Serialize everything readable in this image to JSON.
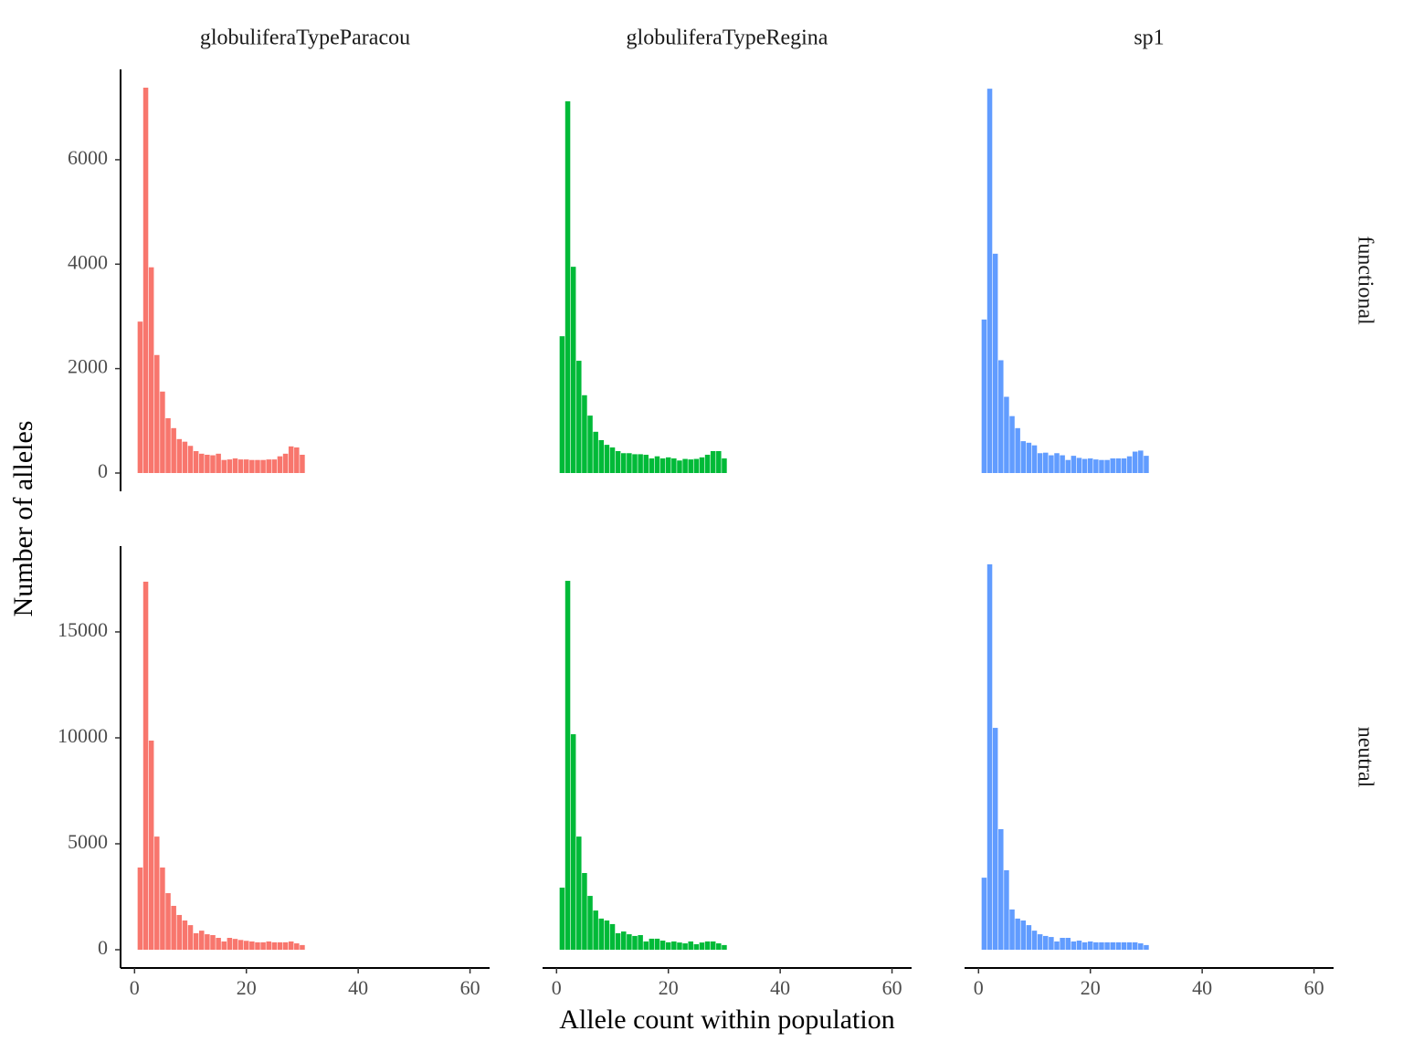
{
  "chart_data": {
    "type": "bar",
    "x_label": "Allele count within population",
    "y_label": "Number of alleles",
    "x": [
      1,
      2,
      3,
      4,
      5,
      6,
      7,
      8,
      9,
      10,
      11,
      12,
      13,
      14,
      15,
      16,
      17,
      18,
      19,
      20,
      21,
      22,
      23,
      24,
      25,
      26,
      27,
      28,
      29,
      30
    ],
    "xlim": [
      -2.5,
      63.5
    ],
    "xticks": [
      0,
      20,
      40,
      60
    ],
    "columns": [
      {
        "name": "globuliferaTypeParacou",
        "color": "#F8766D"
      },
      {
        "name": "globuliferaTypeRegina",
        "color": "#00BA38"
      },
      {
        "name": "sp1",
        "color": "#619CFF"
      }
    ],
    "rows": [
      {
        "name": "functional",
        "ylim": [
          -350,
          7730
        ],
        "yticks": [
          0,
          2000,
          4000,
          6000
        ],
        "series": [
          {
            "values": [
              2900,
              7380,
              3940,
              2260,
              1560,
              1050,
              860,
              650,
              600,
              520,
              420,
              370,
              350,
              340,
              370,
              250,
              260,
              280,
              260,
              260,
              250,
              250,
              250,
              260,
              260,
              320,
              370,
              510,
              490,
              350
            ]
          },
          {
            "values": [
              2620,
              7120,
              3950,
              2150,
              1490,
              1100,
              790,
              630,
              540,
              490,
              420,
              380,
              380,
              360,
              360,
              350,
              280,
              320,
              280,
              300,
              280,
              240,
              270,
              260,
              270,
              300,
              350,
              420,
              420,
              280
            ]
          },
          {
            "values": [
              2940,
              7360,
              4200,
              2160,
              1460,
              1090,
              860,
              610,
              580,
              530,
              380,
              390,
              340,
              380,
              340,
              250,
              330,
              290,
              270,
              280,
              260,
              250,
              250,
              280,
              280,
              280,
              320,
              410,
              430,
              330
            ]
          }
        ]
      },
      {
        "name": "neutral",
        "ylim": [
          -862,
          19050
        ],
        "yticks": [
          0,
          5000,
          10000,
          15000
        ],
        "series": [
          {
            "values": [
              3880,
              17370,
              9870,
              5340,
              3880,
              2670,
              2070,
              1640,
              1380,
              1160,
              780,
              900,
              730,
              690,
              560,
              390,
              560,
              510,
              460,
              420,
              390,
              350,
              350,
              390,
              350,
              350,
              350,
              390,
              300,
              220
            ]
          },
          {
            "values": [
              2930,
              17410,
              10170,
              5340,
              3620,
              2540,
              1850,
              1470,
              1380,
              1210,
              780,
              860,
              730,
              650,
              690,
              390,
              520,
              520,
              430,
              350,
              390,
              340,
              300,
              390,
              260,
              340,
              390,
              390,
              300,
              220
            ]
          },
          {
            "values": [
              3400,
              18190,
              10470,
              5690,
              3750,
              1900,
              1470,
              1380,
              1160,
              900,
              730,
              650,
              600,
              390,
              560,
              560,
              390,
              430,
              350,
              390,
              350,
              350,
              350,
              350,
              350,
              350,
              350,
              350,
              300,
              220
            ]
          }
        ]
      }
    ]
  }
}
